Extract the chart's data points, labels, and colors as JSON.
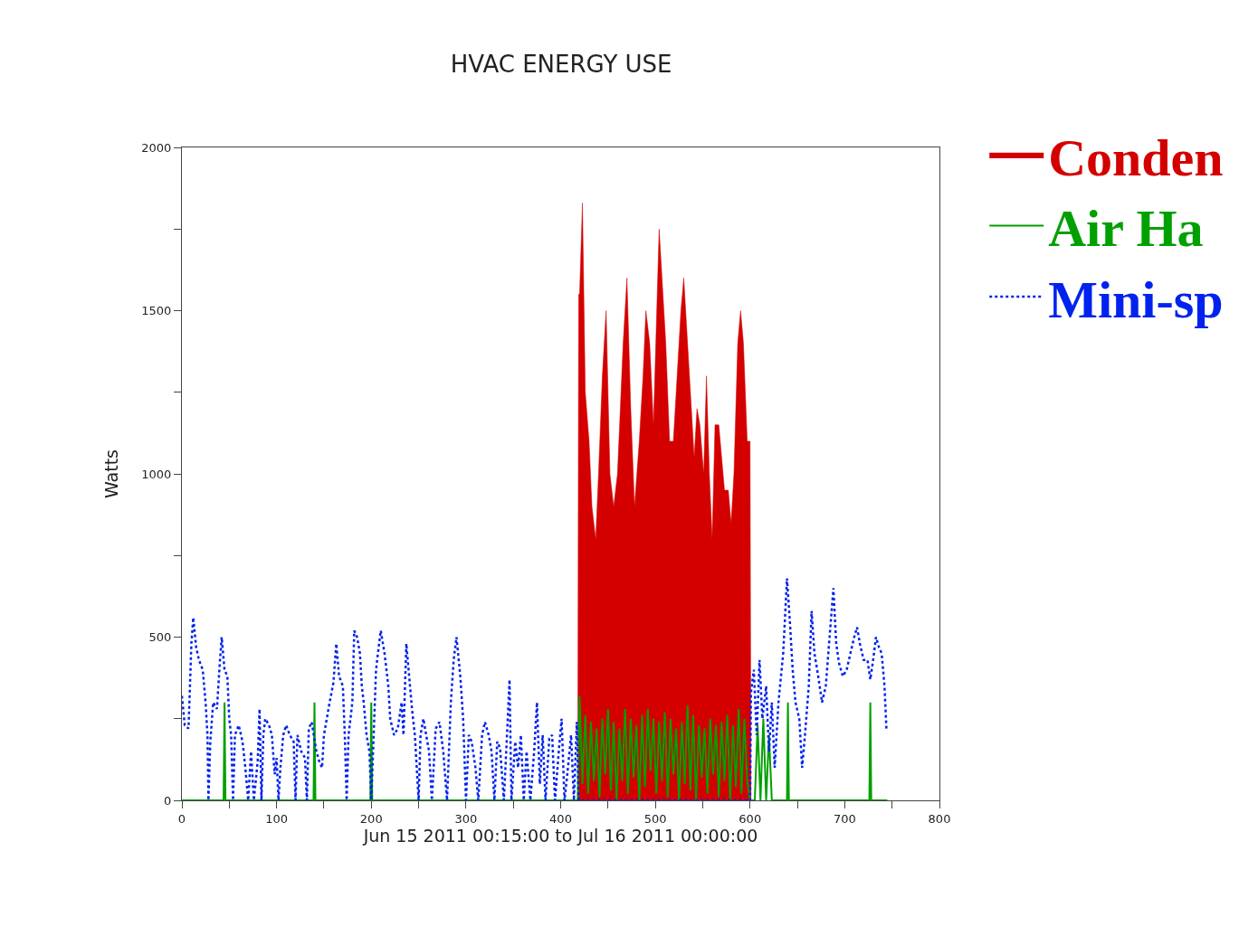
{
  "chart_data": {
    "type": "line",
    "title": "HVAC ENERGY USE",
    "xlabel": "Jun 15 2011 00:15:00 to Jul 16 2011 00:00:00",
    "ylabel": "Watts",
    "xlim": [
      0,
      800
    ],
    "ylim": [
      0,
      2000
    ],
    "xticks": [
      0,
      {
        "value": 50,
        "label": null
      },
      100,
      {
        "value": 150,
        "label": null
      },
      200,
      {
        "value": 250,
        "label": null
      },
      300,
      {
        "value": 350,
        "label": null
      },
      400,
      {
        "value": 450,
        "label": null
      },
      500,
      {
        "value": 550,
        "label": null
      },
      600,
      {
        "value": 650,
        "label": null
      },
      700,
      {
        "value": 750,
        "label": null
      },
      800
    ],
    "yticks": [
      0,
      {
        "value": 250,
        "label": null
      },
      500,
      {
        "value": 750,
        "label": null
      },
      1000,
      {
        "value": 1250,
        "label": null
      },
      1500,
      {
        "value": 1750,
        "label": null
      },
      2000
    ],
    "grid": false,
    "legend": "top right",
    "marker": "none",
    "series": [
      {
        "name": "Conden",
        "type": "area",
        "color": "#d40000",
        "line_style": "solid",
        "x": [
          418,
          419,
          420,
          423,
          426,
          430,
          433,
          437,
          440,
          444,
          448,
          452,
          456,
          460,
          466,
          470,
          474,
          478,
          483,
          487,
          490,
          494,
          498,
          501,
          504,
          507,
          511,
          515,
          519,
          523,
          527,
          530,
          534,
          538,
          541,
          544,
          547,
          551,
          554,
          557,
          560,
          563,
          567,
          570,
          573,
          577,
          580,
          583,
          587,
          590,
          593,
          597,
          600,
          601
        ],
        "values": [
          0,
          1550,
          1550,
          1830,
          1250,
          1100,
          900,
          800,
          1000,
          1300,
          1500,
          1000,
          900,
          1000,
          1400,
          1600,
          1200,
          900,
          1100,
          1300,
          1500,
          1400,
          1150,
          1450,
          1750,
          1600,
          1400,
          1100,
          1100,
          1300,
          1500,
          1600,
          1400,
          1200,
          1050,
          1200,
          1150,
          1000,
          1300,
          1000,
          800,
          1150,
          1150,
          1050,
          950,
          950,
          850,
          1000,
          1400,
          1500,
          1400,
          1100,
          1100,
          0
        ]
      },
      {
        "name": "Air Ha",
        "color": "#00a000",
        "line_style": "solid",
        "x": [
          0,
          44,
          45,
          46,
          139,
          140,
          141,
          199,
          200,
          201,
          418,
          420,
          423,
          426,
          429,
          432,
          435,
          438,
          441,
          444,
          447,
          450,
          453,
          456,
          459,
          462,
          465,
          468,
          471,
          474,
          477,
          480,
          483,
          486,
          489,
          492,
          495,
          498,
          501,
          504,
          507,
          510,
          513,
          516,
          519,
          522,
          525,
          528,
          531,
          534,
          537,
          540,
          543,
          546,
          549,
          552,
          555,
          558,
          561,
          564,
          567,
          570,
          573,
          576,
          579,
          582,
          585,
          588,
          591,
          594,
          597,
          600,
          605,
          608,
          611,
          614,
          617,
          620,
          623,
          639,
          640,
          641,
          726,
          727,
          728,
          745
        ],
        "values": [
          0,
          0,
          300,
          0,
          0,
          300,
          0,
          0,
          300,
          0,
          0,
          320,
          50,
          260,
          20,
          240,
          60,
          220,
          10,
          250,
          80,
          280,
          30,
          240,
          0,
          220,
          60,
          280,
          20,
          250,
          70,
          230,
          0,
          260,
          40,
          280,
          90,
          250,
          20,
          240,
          60,
          270,
          10,
          250,
          80,
          220,
          0,
          240,
          50,
          290,
          30,
          260,
          0,
          230,
          70,
          220,
          20,
          250,
          80,
          230,
          10,
          240,
          60,
          260,
          0,
          230,
          40,
          280,
          20,
          250,
          60,
          0,
          0,
          230,
          0,
          250,
          0,
          200,
          0,
          0,
          300,
          0,
          0,
          300,
          0,
          0
        ]
      },
      {
        "name": "Mini-sp",
        "color": "#0022ee",
        "line_style": "dotted",
        "x": [
          0,
          3,
          7,
          10,
          12,
          15,
          18,
          22,
          25,
          27,
          28,
          30,
          33,
          37,
          40,
          42,
          45,
          48,
          50,
          52,
          54,
          56,
          60,
          64,
          67,
          70,
          73,
          76,
          80,
          82,
          84,
          86,
          88,
          92,
          95,
          98,
          100,
          102,
          104,
          107,
          110,
          114,
          118,
          120,
          122,
          126,
          130,
          132,
          134,
          137,
          142,
          145,
          148,
          150,
          153,
          156,
          160,
          163,
          166,
          170,
          172,
          174,
          176,
          180,
          182,
          185,
          188,
          190,
          192,
          195,
          198,
          200,
          205,
          207,
          210,
          214,
          218,
          220,
          224,
          228,
          232,
          234,
          237,
          240,
          243,
          246,
          250,
          252,
          255,
          258,
          261,
          264,
          268,
          272,
          276,
          280,
          284,
          287,
          290,
          294,
          297,
          300,
          303,
          306,
          310,
          313,
          317,
          320,
          324,
          327,
          330,
          333,
          336,
          340,
          343,
          346,
          348,
          352,
          355,
          358,
          361,
          364,
          368,
          372,
          375,
          378,
          381,
          384,
          388,
          391,
          394,
          398,
          401,
          404,
          407,
          411,
          414,
          417,
          419,
          600,
          601,
          604,
          607,
          610,
          613,
          617,
          620,
          623,
          626,
          630,
          635,
          639,
          642,
          645,
          648,
          652,
          655,
          658,
          662,
          665,
          668,
          672,
          676,
          680,
          684,
          688,
          691,
          694,
          698,
          702,
          706,
          710,
          713,
          716,
          720,
          724,
          727,
          730,
          733,
          736,
          739,
          742,
          744
        ],
        "values": [
          320,
          230,
          220,
          480,
          560,
          470,
          430,
          400,
          300,
          200,
          0,
          180,
          300,
          280,
          420,
          500,
          400,
          380,
          250,
          200,
          0,
          200,
          230,
          180,
          100,
          0,
          150,
          0,
          120,
          280,
          0,
          200,
          250,
          230,
          200,
          80,
          130,
          0,
          100,
          200,
          230,
          200,
          180,
          0,
          200,
          150,
          130,
          0,
          220,
          240,
          150,
          120,
          100,
          200,
          250,
          300,
          360,
          480,
          380,
          350,
          200,
          0,
          200,
          300,
          520,
          500,
          450,
          350,
          300,
          200,
          150,
          0,
          400,
          450,
          520,
          450,
          350,
          250,
          200,
          220,
          300,
          200,
          480,
          380,
          280,
          200,
          0,
          200,
          250,
          200,
          150,
          0,
          220,
          240,
          150,
          0,
          300,
          430,
          500,
          380,
          250,
          0,
          200,
          180,
          100,
          0,
          200,
          240,
          200,
          150,
          0,
          180,
          160,
          0,
          180,
          370,
          0,
          180,
          100,
          200,
          0,
          150,
          0,
          150,
          300,
          50,
          200,
          0,
          190,
          200,
          0,
          150,
          250,
          0,
          80,
          200,
          0,
          240,
          0,
          0,
          330,
          400,
          200,
          430,
          250,
          350,
          150,
          300,
          100,
          300,
          450,
          680,
          550,
          400,
          300,
          250,
          100,
          200,
          350,
          580,
          450,
          380,
          300,
          350,
          500,
          650,
          480,
          420,
          380,
          400,
          450,
          500,
          530,
          480,
          430,
          430,
          370,
          430,
          500,
          470,
          450,
          350,
          220
        ]
      }
    ]
  }
}
